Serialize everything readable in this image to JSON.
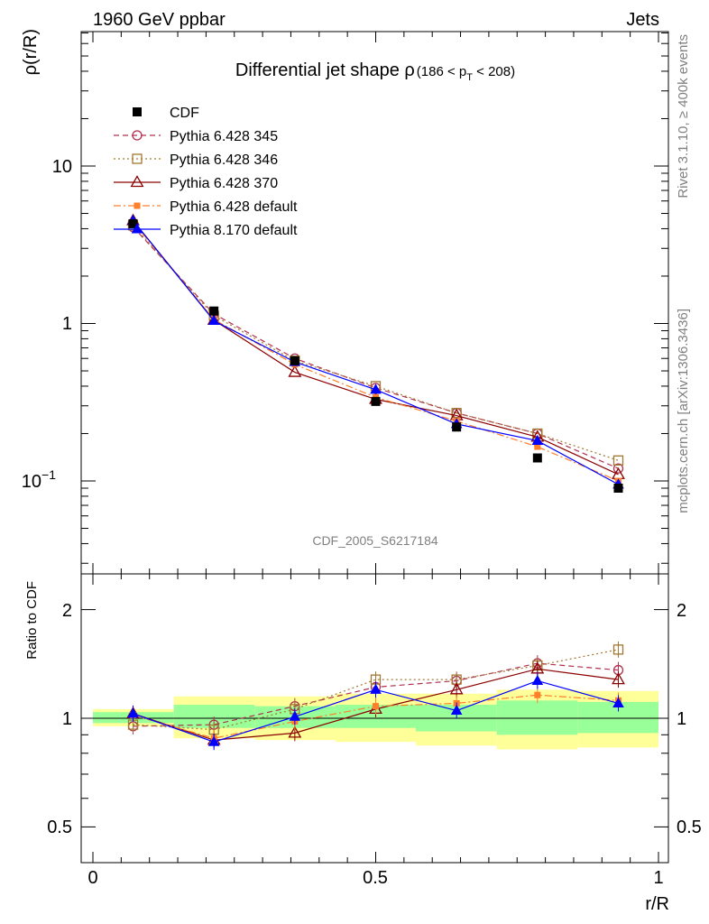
{
  "header": {
    "left": "1960 GeV ppbar",
    "right": "Jets"
  },
  "side_labels": {
    "rivet": "Rivet 3.1.10, ≥ 400k events",
    "source": "mcplots.cern.ch [arXiv:1306.3436]"
  },
  "analysis_id": "CDF_2005_S6217184",
  "title": {
    "main": "Differential jet shape ρ",
    "range_prefix": "(186 < p",
    "range_sub": "T",
    "range_suffix": " < 208)"
  },
  "axes": {
    "ylabel_top": "ρ(r/R)",
    "ylabel_bottom": "Ratio to CDF",
    "xlabel": "r/R",
    "x_ticks": [
      "0",
      "0.5",
      "1"
    ],
    "y_top_ticks": [
      "10",
      "1"
    ],
    "y_top_tick_pow": {
      "base": "10",
      "exp": "−1"
    },
    "y_bottom_ticks": [
      "2",
      "1",
      "0.5"
    ]
  },
  "legend": [
    {
      "label": "CDF",
      "color": "#000000",
      "marker": "square-filled",
      "dash": "none"
    },
    {
      "label": "Pythia 6.428 345",
      "color": "#b03050",
      "marker": "circle-open",
      "dash": "dashed"
    },
    {
      "label": "Pythia 6.428 346",
      "color": "#a07830",
      "marker": "square-open",
      "dash": "dotted"
    },
    {
      "label": "Pythia 6.428 370",
      "color": "#8b0000",
      "marker": "triangle-open",
      "dash": "solid"
    },
    {
      "label": "Pythia 6.428 default",
      "color": "#ff7f2a",
      "marker": "square-filled-small",
      "dash": "dashdot"
    },
    {
      "label": "Pythia 8.170 default",
      "color": "#0000ff",
      "marker": "triangle-filled",
      "dash": "solid"
    }
  ],
  "chart_data": {
    "type": "line",
    "title": "Differential jet shape ρ (186 < pT < 208)",
    "xlabel": "r/R",
    "ylabel": "ρ(r/R)",
    "xlim": [
      -0.02,
      1.02
    ],
    "ylim_top": [
      0.03,
      50
    ],
    "yscale_top": "log",
    "ylim_bottom": [
      0.42,
      2.3
    ],
    "yscale_bottom": "log",
    "x": [
      0.071,
      0.214,
      0.357,
      0.5,
      0.643,
      0.786,
      0.929
    ],
    "data": {
      "name": "CDF",
      "values": [
        4.3,
        1.2,
        0.58,
        0.32,
        0.22,
        0.14,
        0.09
      ]
    },
    "series": [
      {
        "name": "Pythia 6.428 345",
        "values": [
          4.1,
          1.15,
          0.6,
          0.39,
          0.27,
          0.2,
          0.12
        ],
        "ratio": [
          0.95,
          0.96,
          1.08,
          1.22,
          1.27,
          1.42,
          1.36
        ]
      },
      {
        "name": "Pythia 6.428 346",
        "values": [
          4.2,
          1.12,
          0.58,
          0.4,
          0.27,
          0.2,
          0.135
        ],
        "ratio": [
          0.96,
          0.93,
          1.06,
          1.28,
          1.28,
          1.4,
          1.55
        ]
      },
      {
        "name": "Pythia 6.428 370",
        "values": [
          4.5,
          1.05,
          0.49,
          0.33,
          0.26,
          0.19,
          0.11
        ],
        "ratio": [
          1.03,
          0.87,
          0.91,
          1.06,
          1.2,
          1.37,
          1.28
        ]
      },
      {
        "name": "Pythia 6.428 default",
        "values": [
          4.4,
          1.06,
          0.55,
          0.34,
          0.24,
          0.165,
          0.1
        ],
        "ratio": [
          1.02,
          0.88,
          0.98,
          1.08,
          1.1,
          1.16,
          1.12
        ]
      },
      {
        "name": "Pythia 8.170 default",
        "values": [
          4.5,
          1.04,
          0.57,
          0.38,
          0.23,
          0.18,
          0.095
        ],
        "ratio": [
          1.03,
          0.86,
          1.01,
          1.2,
          1.05,
          1.27,
          1.1
        ]
      }
    ],
    "bands": {
      "x_edges": [
        0.0,
        0.143,
        0.286,
        0.429,
        0.571,
        0.714,
        0.857,
        1.0
      ],
      "green": [
        [
          0.97,
          1.04
        ],
        [
          0.94,
          1.09
        ],
        [
          0.94,
          1.08
        ],
        [
          0.94,
          1.09
        ],
        [
          0.92,
          1.09
        ],
        [
          0.9,
          1.12
        ],
        [
          0.91,
          1.11
        ]
      ],
      "yellow": [
        [
          0.95,
          1.06
        ],
        [
          0.88,
          1.15
        ],
        [
          0.87,
          1.15
        ],
        [
          0.86,
          1.17
        ],
        [
          0.84,
          1.17
        ],
        [
          0.82,
          1.2
        ],
        [
          0.83,
          1.19
        ]
      ],
      "green_color": "#99ff99",
      "yellow_color": "#ffff99"
    }
  }
}
